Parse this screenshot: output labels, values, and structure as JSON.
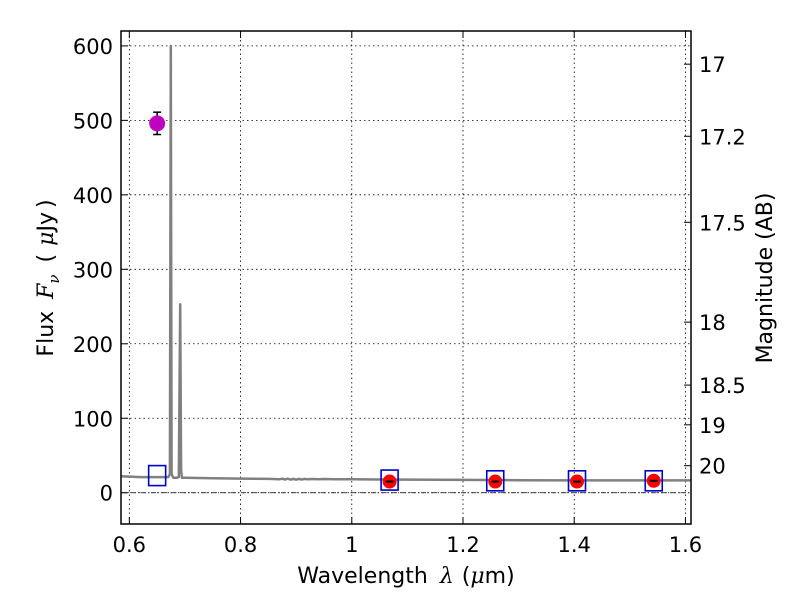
{
  "chart_data": {
    "type": "line",
    "title": "",
    "xlabel": {
      "prefix": "Wavelength",
      "symbol": "λ",
      "unit_open": "(",
      "unit_mu": "μ",
      "unit_rest": "m)"
    },
    "ylabel": {
      "prefix": "Flux",
      "symbol": "F",
      "subscript": "ν",
      "unit_open": "(",
      "unit_mu": "μ",
      "unit_rest": "Jy",
      "unit_close": ")"
    },
    "y2label": "Magnitude (AB)",
    "xlim": [
      0.585,
      1.61
    ],
    "ylim": [
      -42,
      620
    ],
    "grid": true,
    "x_ticks": [
      {
        "value": 0.6,
        "label": "0.6"
      },
      {
        "value": 0.8,
        "label": "0.8"
      },
      {
        "value": 1.0,
        "label": "1"
      },
      {
        "value": 1.2,
        "label": "1.2"
      },
      {
        "value": 1.4,
        "label": "1.4"
      },
      {
        "value": 1.6,
        "label": "1.6"
      }
    ],
    "y_ticks": [
      {
        "value": 0,
        "label": "0"
      },
      {
        "value": 100,
        "label": "100"
      },
      {
        "value": 200,
        "label": "200"
      },
      {
        "value": 300,
        "label": "300"
      },
      {
        "value": 400,
        "label": "400"
      },
      {
        "value": 500,
        "label": "500"
      },
      {
        "value": 600,
        "label": "600"
      }
    ],
    "y2_ticks": [
      {
        "value": 17,
        "label": "17"
      },
      {
        "value": 17.2,
        "label": "17.2"
      },
      {
        "value": 17.5,
        "label": "17.5"
      },
      {
        "value": 18,
        "label": "18"
      },
      {
        "value": 18.5,
        "label": "18.5"
      },
      {
        "value": 19,
        "label": "19"
      },
      {
        "value": 20,
        "label": "20"
      }
    ],
    "series": [
      {
        "type": "line",
        "color": "#808080",
        "x": [
          0.585,
          0.62,
          0.65,
          0.67,
          0.673,
          0.6745,
          0.676,
          0.679,
          0.685,
          0.689,
          0.6915,
          0.693,
          0.6945,
          0.697,
          0.7,
          0.75,
          0.8,
          0.85,
          0.87,
          0.875,
          0.88,
          0.885,
          0.89,
          0.895,
          0.9,
          0.905,
          0.91,
          0.915,
          0.92,
          0.93,
          0.94,
          0.95,
          0.97,
          1.0,
          1.05,
          1.1,
          1.2,
          1.3,
          1.4,
          1.5,
          1.61
        ],
        "y": [
          22,
          21,
          21,
          21,
          25,
          600,
          25,
          20,
          20,
          21,
          253,
          30,
          20,
          20,
          20,
          19.5,
          19,
          18.5,
          18,
          18.8,
          17.8,
          18.8,
          17.6,
          18.6,
          17.6,
          18.6,
          17.8,
          18.6,
          18,
          18.4,
          18,
          18.4,
          18.2,
          18,
          17.8,
          17.6,
          17.2,
          16.8,
          16.6,
          16.5,
          16.5
        ]
      },
      {
        "type": "errorbar-point",
        "color": "#bf00bf",
        "x": [
          0.65
        ],
        "y": [
          496
        ],
        "yerr": [
          15
        ]
      },
      {
        "type": "scatter",
        "color": "#ff0000",
        "x": [
          1.068,
          1.258,
          1.405,
          1.543
        ],
        "y": [
          15,
          15,
          15,
          16
        ],
        "yerr": [
          3,
          3,
          3,
          3
        ]
      },
      {
        "type": "square-markers",
        "color": "#0000cc",
        "x": [
          0.65,
          1.068,
          1.258,
          1.405,
          1.543
        ],
        "y": [
          23,
          17,
          16,
          16,
          16
        ]
      }
    ],
    "zero_line": 0
  }
}
